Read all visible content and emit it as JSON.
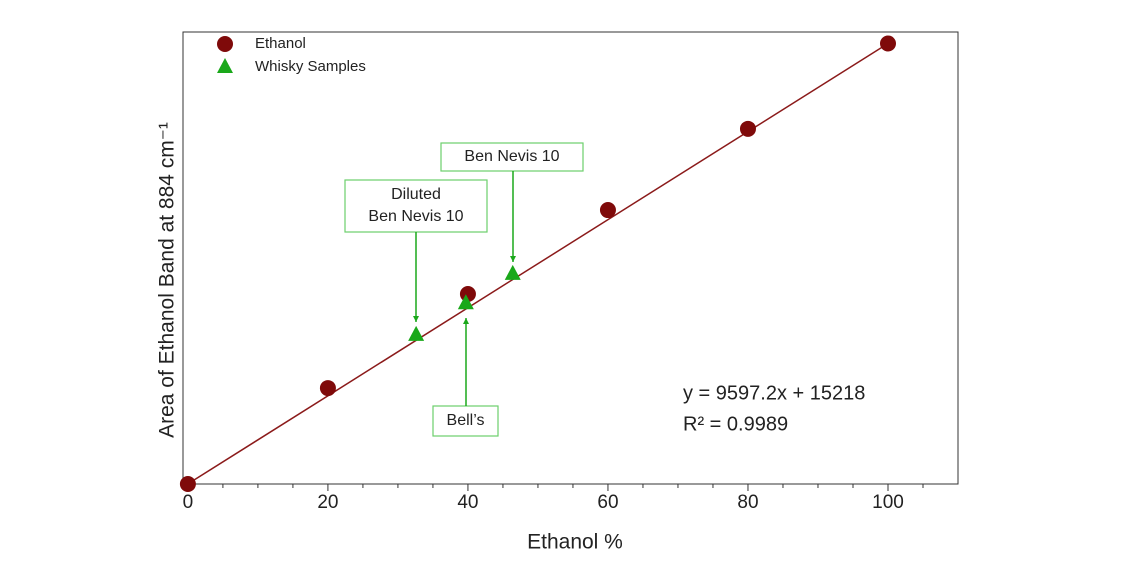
{
  "chart_data": {
    "type": "scatter",
    "x_label": "Ethanol %",
    "y_label": "Area of Ethanol Band at 884 cm⁻¹",
    "xlim": [
      -0.7,
      110
    ],
    "ylim": [
      15000,
      1000000
    ],
    "xticks": [
      0,
      20,
      40,
      60,
      80,
      100
    ],
    "xminorticks": [
      5,
      10,
      15,
      25,
      30,
      35,
      45,
      50,
      55,
      65,
      70,
      75,
      85,
      90,
      95,
      105
    ],
    "legend": "top-left",
    "series": [
      {
        "name": "Ethanol",
        "color": "#7f0a0a",
        "marker": "circle",
        "x": [
          0,
          20,
          40,
          60,
          80,
          100
        ],
        "values": [
          15000,
          224000,
          429000,
          612000,
          789000,
          975000
        ]
      },
      {
        "name": "Whisky Samples",
        "color": "#1aa81a",
        "marker": "triangle",
        "x": [
          32.6,
          39.7,
          46.4
        ],
        "values": [
          340000,
          409000,
          473000
        ]
      }
    ],
    "fit": {
      "slope": 9597.2,
      "intercept": 15218,
      "color": "#8b1a1a",
      "equation": "y = 9597.2x + 15218",
      "r2_label": "R² = 0.9989"
    },
    "annotations": [
      {
        "lines": [
          "Diluted",
          "Ben Nevis 10"
        ]
      },
      {
        "lines": [
          "Ben Nevis 10"
        ]
      },
      {
        "lines": [
          "Bell’s"
        ]
      }
    ]
  }
}
